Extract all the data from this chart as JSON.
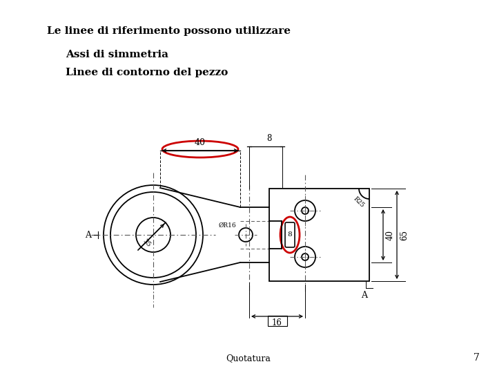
{
  "title_line": "Le linee di riferimento possono utilizzare",
  "subtitle1": "Assi di simmetria",
  "subtitle2": "Linee di contorno del pezzo",
  "footer_text": "Quotatura",
  "footer_page": "7",
  "bg_color": "#ffffff",
  "text_color": "#000000",
  "red_color": "#cc0000",
  "drawing_color": "#000000",
  "dashed_color": "#555555"
}
